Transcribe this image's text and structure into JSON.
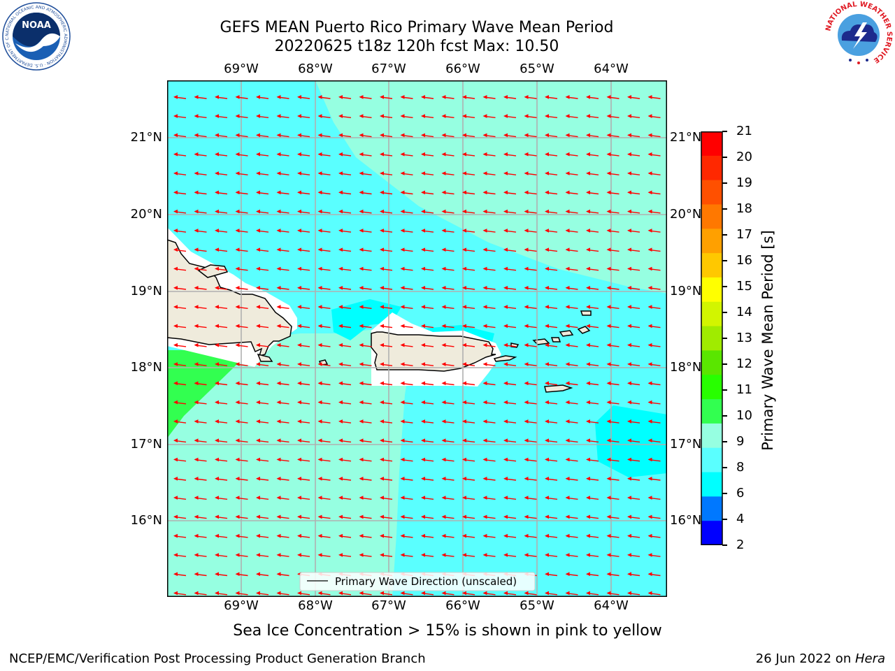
{
  "header": {
    "title": "GEFS MEAN Puerto Rico Primary Wave Mean Period",
    "subtitle": "20220625 t18z 120h fcst   Max: 10.50"
  },
  "logos": {
    "noaa_text": "NOAA",
    "noaa_ring_text": "NATIONAL OCEANIC AND ATMOSPHERIC ADMINISTRATION · U.S. DEPARTMENT OF COMMERCE",
    "nws_ring_text": "NATIONAL WEATHER SERVICE"
  },
  "map": {
    "lon_labels": [
      "69°W",
      "68°W",
      "67°W",
      "66°W",
      "65°W",
      "64°W"
    ],
    "lat_labels": [
      "21°N",
      "20°N",
      "19°N",
      "18°N",
      "17°N",
      "16°N"
    ],
    "legend_label": "Primary Wave Direction (unscaled)",
    "arrow_color": "#ff0000",
    "land_color": "#efebdc"
  },
  "colorbar": {
    "label": "Primary Wave Mean Period [s]",
    "ticks": [
      "21",
      "20",
      "19",
      "18",
      "17",
      "16",
      "15",
      "14",
      "13",
      "12",
      "11",
      "10",
      "9",
      "8",
      "6",
      "4",
      "2"
    ],
    "colors": [
      "#ff0000",
      "#ff2800",
      "#ff5000",
      "#ff7800",
      "#ffa000",
      "#ffc800",
      "#ffff00",
      "#d2f500",
      "#a0eb00",
      "#5ae600",
      "#28ff00",
      "#32ff50",
      "#96ffe1",
      "#5affff",
      "#00ffff",
      "#0078ff",
      "#0000ff"
    ]
  },
  "footer": {
    "note": "Sea Ice Concentration > 15% is shown in pink to yellow",
    "left": "NCEP/EMC/Verification Post Processing Product Generation Branch",
    "date": "26 Jun 2022 on ",
    "host": "Hera"
  }
}
